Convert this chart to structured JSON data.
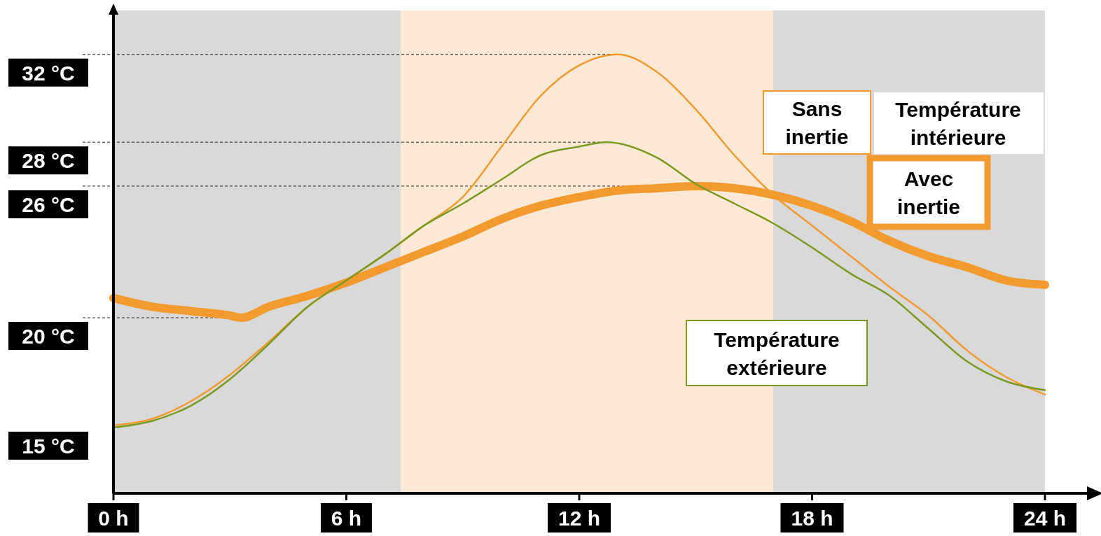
{
  "chart_data": {
    "type": "line",
    "legend_title": "Température intérieure",
    "legend": "right",
    "line_style": "solid",
    "marker": "none",
    "ref_lines": [
      {
        "axis": "y",
        "value": 32,
        "line_style": "dashed",
        "color": "#222222"
      },
      {
        "axis": "y",
        "value": 28,
        "line_style": "dashed",
        "color": "#222222"
      },
      {
        "axis": "y",
        "value": 26,
        "line_style": "dashed",
        "color": "#222222"
      },
      {
        "axis": "y",
        "value": 20,
        "line_style": "dashed",
        "color": "#222222"
      }
    ],
    "xlim": [
      0,
      24
    ],
    "xticks": [
      {
        "value": 0,
        "label": "0 h"
      },
      {
        "value": 6,
        "label": "6 h"
      },
      {
        "value": 12,
        "label": "12 h"
      },
      {
        "value": 18,
        "label": "18 h"
      },
      {
        "value": 24,
        "label": "24 h"
      }
    ],
    "ylim": [
      12,
      34
    ],
    "yticks": [
      {
        "value": 15,
        "label": "15 °C"
      },
      {
        "value": 20,
        "label": "20 °C"
      },
      {
        "value": 26,
        "label": "26 °C"
      },
      {
        "value": 28,
        "label": "28 °C"
      },
      {
        "value": 32,
        "label": "32 °C"
      }
    ],
    "bands": [
      {
        "axis": "x",
        "from": 0,
        "to": 7.4,
        "color": "#d9d9d9"
      },
      {
        "axis": "x",
        "from": 7.4,
        "to": 17,
        "color": "#fbe8d5"
      },
      {
        "axis": "x",
        "from": 17,
        "to": 24,
        "color": "#d9d9d9"
      }
    ],
    "series": [
      {
        "name": "Sans inertie",
        "color": "#f39a2e",
        "x": [
          0,
          1,
          2,
          3,
          4,
          5,
          6,
          7,
          8,
          9,
          10,
          11,
          12,
          13,
          14,
          15,
          16,
          17,
          18,
          19,
          20,
          21,
          22,
          23,
          24
        ],
        "values": [
          15.1,
          15.4,
          16.2,
          17.4,
          18.9,
          20.5,
          21.7,
          22.9,
          24.2,
          25.5,
          27.8,
          30.1,
          31.5,
          32,
          31.2,
          29.5,
          27.4,
          25.6,
          24.2,
          22.8,
          21.4,
          20.1,
          18.5,
          17.3,
          16.5
        ]
      },
      {
        "name": "Avec inertie",
        "color": "#f39a2e",
        "x": [
          0,
          1,
          2,
          3,
          3.3,
          4,
          5,
          6,
          7,
          8,
          9,
          10,
          11,
          12,
          13,
          14,
          15,
          16,
          17,
          18,
          19,
          20,
          21,
          22,
          23,
          24
        ],
        "values": [
          20.9,
          20.5,
          20.3,
          20.1,
          20,
          20.5,
          21,
          21.6,
          22.3,
          23,
          23.7,
          24.5,
          25.1,
          25.5,
          25.8,
          25.9,
          26,
          25.9,
          25.6,
          25.1,
          24.4,
          23.5,
          22.8,
          22.3,
          21.7,
          21.5
        ]
      },
      {
        "name": "Température extérieure",
        "color": "#7a9a1f",
        "x": [
          0,
          1,
          2,
          3,
          4,
          5,
          6,
          7,
          8,
          9,
          10,
          11,
          12,
          12.7,
          14,
          15,
          16,
          17,
          18,
          19,
          20,
          21,
          22,
          23,
          24
        ],
        "values": [
          15,
          15.3,
          16,
          17.2,
          18.8,
          20.5,
          21.7,
          22.9,
          24.2,
          25.2,
          26.3,
          27.4,
          27.8,
          28,
          27.3,
          26.1,
          25.2,
          24.3,
          23.2,
          22,
          21,
          19.5,
          18,
          17.1,
          16.7
        ]
      }
    ]
  }
}
